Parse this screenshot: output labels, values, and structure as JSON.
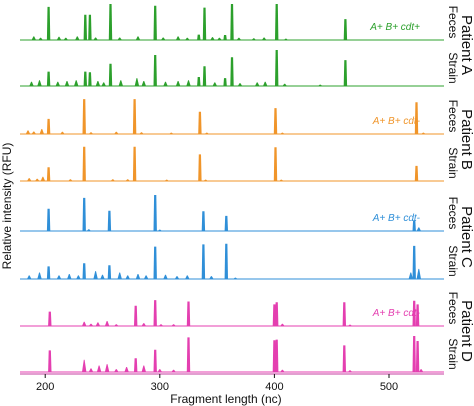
{
  "chart_data": {
    "type": "line",
    "title": "",
    "xlabel": "Fragment length (nc)",
    "ylabel": "Relative intensity (RFU)",
    "xlim": [
      178,
      548
    ],
    "x_ticks": [
      "200",
      "300",
      "400",
      "500"
    ],
    "x_tick_values": [
      200,
      300,
      400,
      500
    ],
    "grid": false,
    "panels": [
      {
        "patient": "Patient A",
        "genotype": "A+ B+ cdt+",
        "color": "#2ca02c",
        "traces": [
          {
            "sample": "Feces",
            "peaks": [
              {
                "x": 203,
                "h": 0.92
              },
              {
                "x": 235,
                "h": 0.7
              },
              {
                "x": 239,
                "h": 0.7
              },
              {
                "x": 257,
                "h": 1.0
              },
              {
                "x": 296,
                "h": 0.95
              },
              {
                "x": 334,
                "h": 0.15
              },
              {
                "x": 339,
                "h": 0.9
              },
              {
                "x": 357,
                "h": 0.14
              },
              {
                "x": 363,
                "h": 1.0
              },
              {
                "x": 402,
                "h": 1.0
              },
              {
                "x": 462,
                "h": 0.58
              }
            ],
            "bumps": [
              {
                "x": 190,
                "h": 0.1
              },
              {
                "x": 196,
                "h": 0.06
              },
              {
                "x": 212,
                "h": 0.09
              },
              {
                "x": 218,
                "h": 0.06
              },
              {
                "x": 228,
                "h": 0.1
              },
              {
                "x": 244,
                "h": 0.07
              },
              {
                "x": 265,
                "h": 0.07
              },
              {
                "x": 281,
                "h": 0.1
              },
              {
                "x": 303,
                "h": 0.07
              },
              {
                "x": 316,
                "h": 0.1
              },
              {
                "x": 324,
                "h": 0.06
              },
              {
                "x": 346,
                "h": 0.08
              },
              {
                "x": 352,
                "h": 0.06
              },
              {
                "x": 369,
                "h": 0.06
              },
              {
                "x": 382,
                "h": 0.05
              },
              {
                "x": 391,
                "h": 0.07
              },
              {
                "x": 410,
                "h": 0.04
              }
            ]
          },
          {
            "sample": "Strain",
            "peaks": [
              {
                "x": 203,
                "h": 0.4
              },
              {
                "x": 235,
                "h": 0.4
              },
              {
                "x": 239,
                "h": 0.38
              },
              {
                "x": 257,
                "h": 0.62
              },
              {
                "x": 296,
                "h": 0.86
              },
              {
                "x": 334,
                "h": 0.25
              },
              {
                "x": 339,
                "h": 0.55
              },
              {
                "x": 357,
                "h": 0.22
              },
              {
                "x": 363,
                "h": 0.8
              },
              {
                "x": 402,
                "h": 1.0
              },
              {
                "x": 462,
                "h": 0.72
              }
            ],
            "bumps": [
              {
                "x": 188,
                "h": 0.12
              },
              {
                "x": 195,
                "h": 0.16
              },
              {
                "x": 211,
                "h": 0.12
              },
              {
                "x": 219,
                "h": 0.14
              },
              {
                "x": 227,
                "h": 0.16
              },
              {
                "x": 246,
                "h": 0.14
              },
              {
                "x": 251,
                "h": 0.1
              },
              {
                "x": 266,
                "h": 0.16
              },
              {
                "x": 280,
                "h": 0.22
              },
              {
                "x": 286,
                "h": 0.14
              },
              {
                "x": 305,
                "h": 0.12
              },
              {
                "x": 316,
                "h": 0.14
              },
              {
                "x": 325,
                "h": 0.16
              },
              {
                "x": 348,
                "h": 0.1
              },
              {
                "x": 370,
                "h": 0.08
              },
              {
                "x": 385,
                "h": 0.1
              },
              {
                "x": 392,
                "h": 0.12
              },
              {
                "x": 409,
                "h": 0.06
              },
              {
                "x": 440,
                "h": 0.04
              }
            ]
          }
        ]
      },
      {
        "patient": "Patient B",
        "genotype": "A+ B+ cdt-",
        "color": "#f0952a",
        "traces": [
          {
            "sample": "Feces",
            "peaks": [
              {
                "x": 203,
                "h": 0.42
              },
              {
                "x": 234,
                "h": 0.97
              },
              {
                "x": 278,
                "h": 0.97
              },
              {
                "x": 335,
                "h": 0.62
              },
              {
                "x": 401,
                "h": 0.72
              },
              {
                "x": 524,
                "h": 0.88
              }
            ],
            "bumps": [
              {
                "x": 185,
                "h": 0.1
              },
              {
                "x": 190,
                "h": 0.07
              },
              {
                "x": 197,
                "h": 0.14
              },
              {
                "x": 215,
                "h": 0.06
              },
              {
                "x": 240,
                "h": 0.05
              },
              {
                "x": 262,
                "h": 0.06
              },
              {
                "x": 284,
                "h": 0.05
              },
              {
                "x": 310,
                "h": 0.04
              },
              {
                "x": 341,
                "h": 0.04
              },
              {
                "x": 407,
                "h": 0.04
              },
              {
                "x": 530,
                "h": 0.04
              }
            ]
          },
          {
            "sample": "Strain",
            "peaks": [
              {
                "x": 203,
                "h": 0.38
              },
              {
                "x": 234,
                "h": 0.95
              },
              {
                "x": 278,
                "h": 0.95
              },
              {
                "x": 335,
                "h": 0.74
              },
              {
                "x": 401,
                "h": 0.94
              },
              {
                "x": 524,
                "h": 0.42
              }
            ],
            "bumps": [
              {
                "x": 186,
                "h": 0.08
              },
              {
                "x": 193,
                "h": 0.06
              },
              {
                "x": 198,
                "h": 0.12
              },
              {
                "x": 222,
                "h": 0.05
              },
              {
                "x": 259,
                "h": 0.05
              },
              {
                "x": 272,
                "h": 0.05
              },
              {
                "x": 306,
                "h": 0.04
              },
              {
                "x": 340,
                "h": 0.04
              },
              {
                "x": 406,
                "h": 0.04
              }
            ]
          }
        ]
      },
      {
        "patient": "Patient C",
        "genotype": "A+ B+ cdt-",
        "color": "#2f8fd8",
        "traces": [
          {
            "sample": "Feces",
            "peaks": [
              {
                "x": 203,
                "h": 0.62
              },
              {
                "x": 234,
                "h": 0.92
              },
              {
                "x": 256,
                "h": 0.56
              },
              {
                "x": 296,
                "h": 1.0
              },
              {
                "x": 338,
                "h": 0.55
              },
              {
                "x": 358,
                "h": 0.42
              },
              {
                "x": 522,
                "h": 0.3
              }
            ],
            "bumps": [
              {
                "x": 238,
                "h": 0.05
              },
              {
                "x": 300,
                "h": 0.04
              },
              {
                "x": 526,
                "h": 0.1
              }
            ]
          },
          {
            "sample": "Strain",
            "peaks": [
              {
                "x": 203,
                "h": 0.35
              },
              {
                "x": 234,
                "h": 0.44
              },
              {
                "x": 256,
                "h": 0.38
              },
              {
                "x": 296,
                "h": 0.9
              },
              {
                "x": 338,
                "h": 0.96
              },
              {
                "x": 358,
                "h": 0.98
              },
              {
                "x": 522,
                "h": 0.92
              }
            ],
            "bumps": [
              {
                "x": 186,
                "h": 0.1
              },
              {
                "x": 195,
                "h": 0.18
              },
              {
                "x": 212,
                "h": 0.1
              },
              {
                "x": 221,
                "h": 0.14
              },
              {
                "x": 229,
                "h": 0.1
              },
              {
                "x": 244,
                "h": 0.22
              },
              {
                "x": 250,
                "h": 0.12
              },
              {
                "x": 265,
                "h": 0.18
              },
              {
                "x": 272,
                "h": 0.1
              },
              {
                "x": 281,
                "h": 0.14
              },
              {
                "x": 288,
                "h": 0.1
              },
              {
                "x": 305,
                "h": 0.12
              },
              {
                "x": 315,
                "h": 0.08
              },
              {
                "x": 324,
                "h": 0.1
              },
              {
                "x": 345,
                "h": 0.08
              },
              {
                "x": 366,
                "h": 0.04
              },
              {
                "x": 526,
                "h": 0.28
              },
              {
                "x": 519,
                "h": 0.18
              }
            ]
          }
        ]
      },
      {
        "patient": "Patient D",
        "genotype": "A+ B+ cdt-",
        "color": "#e43fb0",
        "traces": [
          {
            "sample": "Feces",
            "peaks": [
              {
                "x": 204,
                "h": 0.4
              },
              {
                "x": 279,
                "h": 0.56
              },
              {
                "x": 296,
                "h": 0.72
              },
              {
                "x": 325,
                "h": 0.68
              },
              {
                "x": 400,
                "h": 0.6
              },
              {
                "x": 402,
                "h": 0.66
              },
              {
                "x": 461,
                "h": 0.66
              },
              {
                "x": 522,
                "h": 0.7
              },
              {
                "x": 525,
                "h": 0.6
              }
            ],
            "bumps": [
              {
                "x": 234,
                "h": 0.12
              },
              {
                "x": 240,
                "h": 0.06
              },
              {
                "x": 246,
                "h": 0.1
              },
              {
                "x": 254,
                "h": 0.14
              },
              {
                "x": 262,
                "h": 0.05
              },
              {
                "x": 286,
                "h": 0.08
              },
              {
                "x": 301,
                "h": 0.05
              },
              {
                "x": 312,
                "h": 0.05
              },
              {
                "x": 407,
                "h": 0.06
              },
              {
                "x": 466,
                "h": 0.04
              }
            ]
          },
          {
            "sample": "Strain",
            "peaks": [
              {
                "x": 204,
                "h": 0.6
              },
              {
                "x": 279,
                "h": 0.38
              },
              {
                "x": 296,
                "h": 0.62
              },
              {
                "x": 325,
                "h": 0.96
              },
              {
                "x": 400,
                "h": 0.88
              },
              {
                "x": 402,
                "h": 0.9
              },
              {
                "x": 461,
                "h": 0.74
              },
              {
                "x": 522,
                "h": 1.0
              },
              {
                "x": 525,
                "h": 0.86
              }
            ],
            "bumps": [
              {
                "x": 234,
                "h": 0.34
              },
              {
                "x": 240,
                "h": 0.1
              },
              {
                "x": 247,
                "h": 0.18
              },
              {
                "x": 254,
                "h": 0.22
              },
              {
                "x": 262,
                "h": 0.08
              },
              {
                "x": 271,
                "h": 0.14
              },
              {
                "x": 286,
                "h": 0.18
              },
              {
                "x": 300,
                "h": 0.08
              },
              {
                "x": 312,
                "h": 0.06
              },
              {
                "x": 407,
                "h": 0.06
              },
              {
                "x": 466,
                "h": 0.05
              },
              {
                "x": 528,
                "h": 0.08
              }
            ]
          }
        ]
      }
    ]
  }
}
